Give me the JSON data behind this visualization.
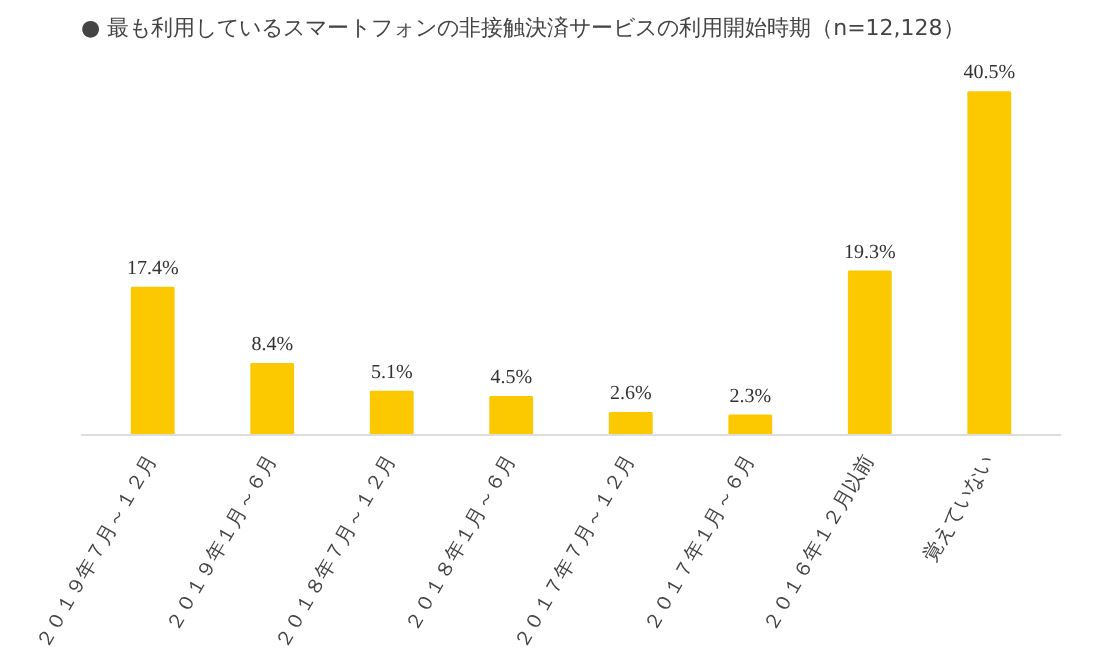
{
  "chart_data": {
    "type": "bar",
    "title": "● 最も利用しているスマートフォンの非接触決済サービスの利用開始時期（n=12,128）",
    "categories": [
      "２０１９年７月～１２月",
      "２０１９年１月～６月",
      "２０１８年７月～１２月",
      "２０１８年１月～６月",
      "２０１７年７月～１２月",
      "２０１７年１月～６月",
      "２０１６年１２月以前",
      "覚えていない"
    ],
    "values": [
      17.4,
      8.4,
      5.1,
      4.5,
      2.6,
      2.3,
      19.3,
      40.5
    ],
    "value_labels": [
      "17.4%",
      "8.4%",
      "5.1%",
      "4.5%",
      "2.6%",
      "2.3%",
      "19.3%",
      "40.5%"
    ],
    "color": "#fcc800",
    "grid": false
  }
}
